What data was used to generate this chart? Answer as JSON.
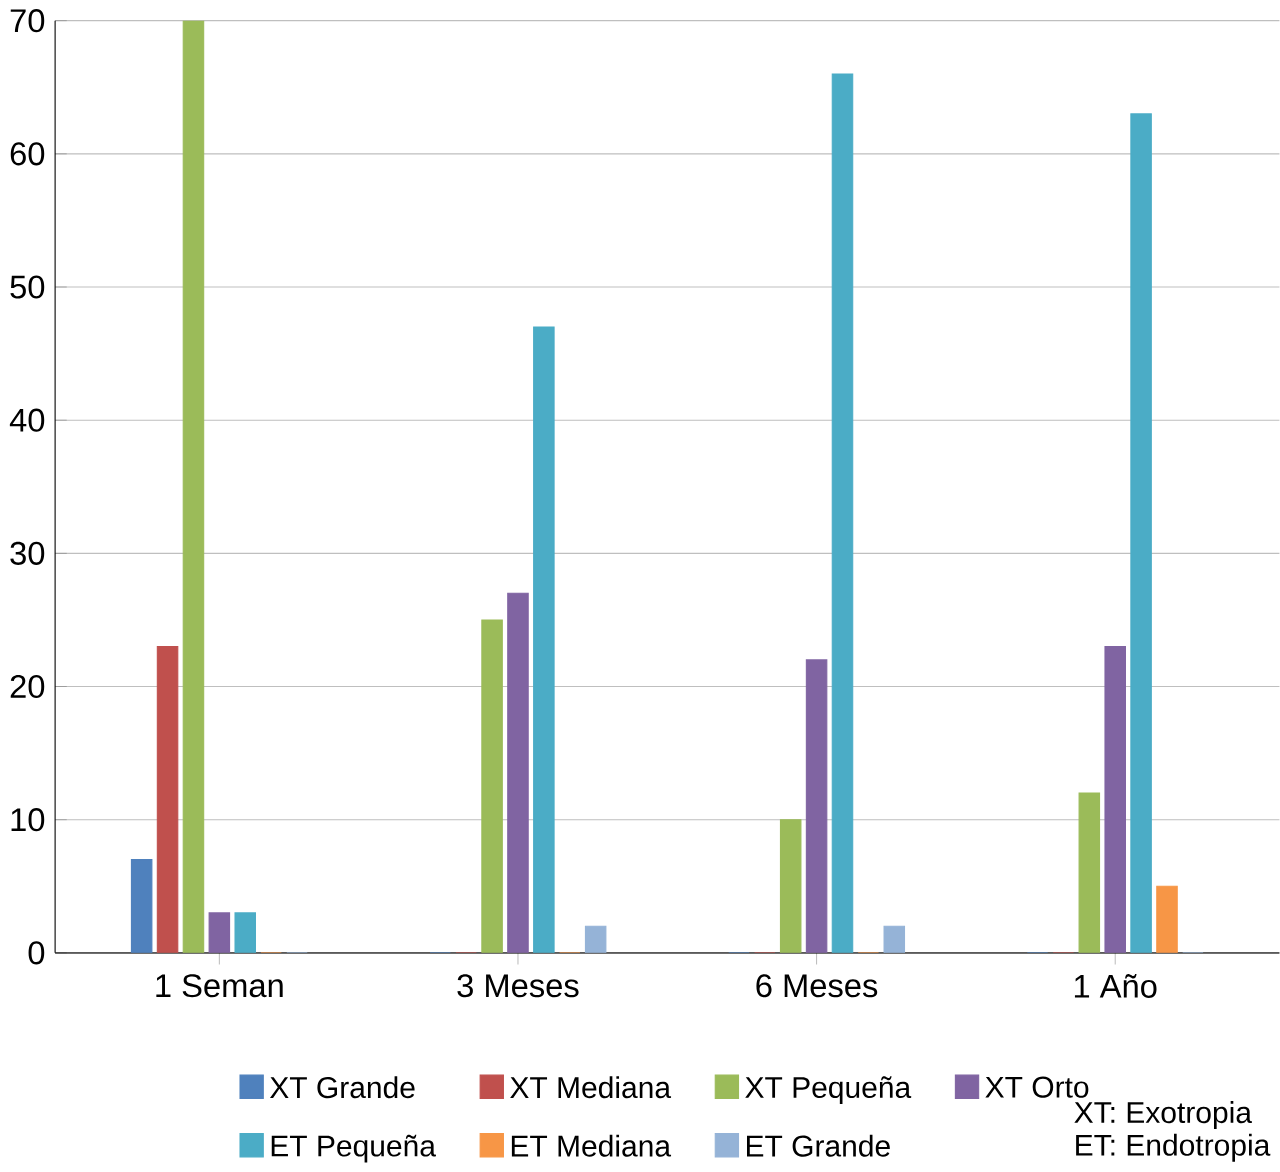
{
  "chart_data": {
    "type": "bar",
    "categories": [
      "1 Seman",
      "3 Meses",
      "6 Meses",
      "1 Año"
    ],
    "series": [
      {
        "name": "XT Grande",
        "color": "#4f81bd",
        "values": [
          7,
          0,
          0,
          0
        ]
      },
      {
        "name": "XT Mediana",
        "color": "#c0504d",
        "values": [
          23,
          0,
          0,
          0
        ]
      },
      {
        "name": "XT Pequeña",
        "color": "#9bbb59",
        "values": [
          70,
          25,
          10,
          12
        ]
      },
      {
        "name": "XT Orto",
        "color": "#8064a2",
        "values": [
          3,
          27,
          22,
          23
        ]
      },
      {
        "name": "ET Pequeña",
        "color": "#4bacc6",
        "values": [
          3,
          47,
          66,
          63
        ]
      },
      {
        "name": "ET Mediana",
        "color": "#f79646",
        "values": [
          0,
          0,
          0,
          5
        ]
      },
      {
        "name": "ET Grande",
        "color": "#95b3d7",
        "values": [
          0,
          2,
          2,
          0
        ]
      }
    ],
    "ylim": [
      0,
      70
    ],
    "yticks": [
      0,
      10,
      20,
      30,
      40,
      50,
      60,
      70
    ],
    "grid": "y",
    "legend": "bottom",
    "annotations": [
      "XT: Exotropia",
      "ET: Endotropia"
    ]
  }
}
